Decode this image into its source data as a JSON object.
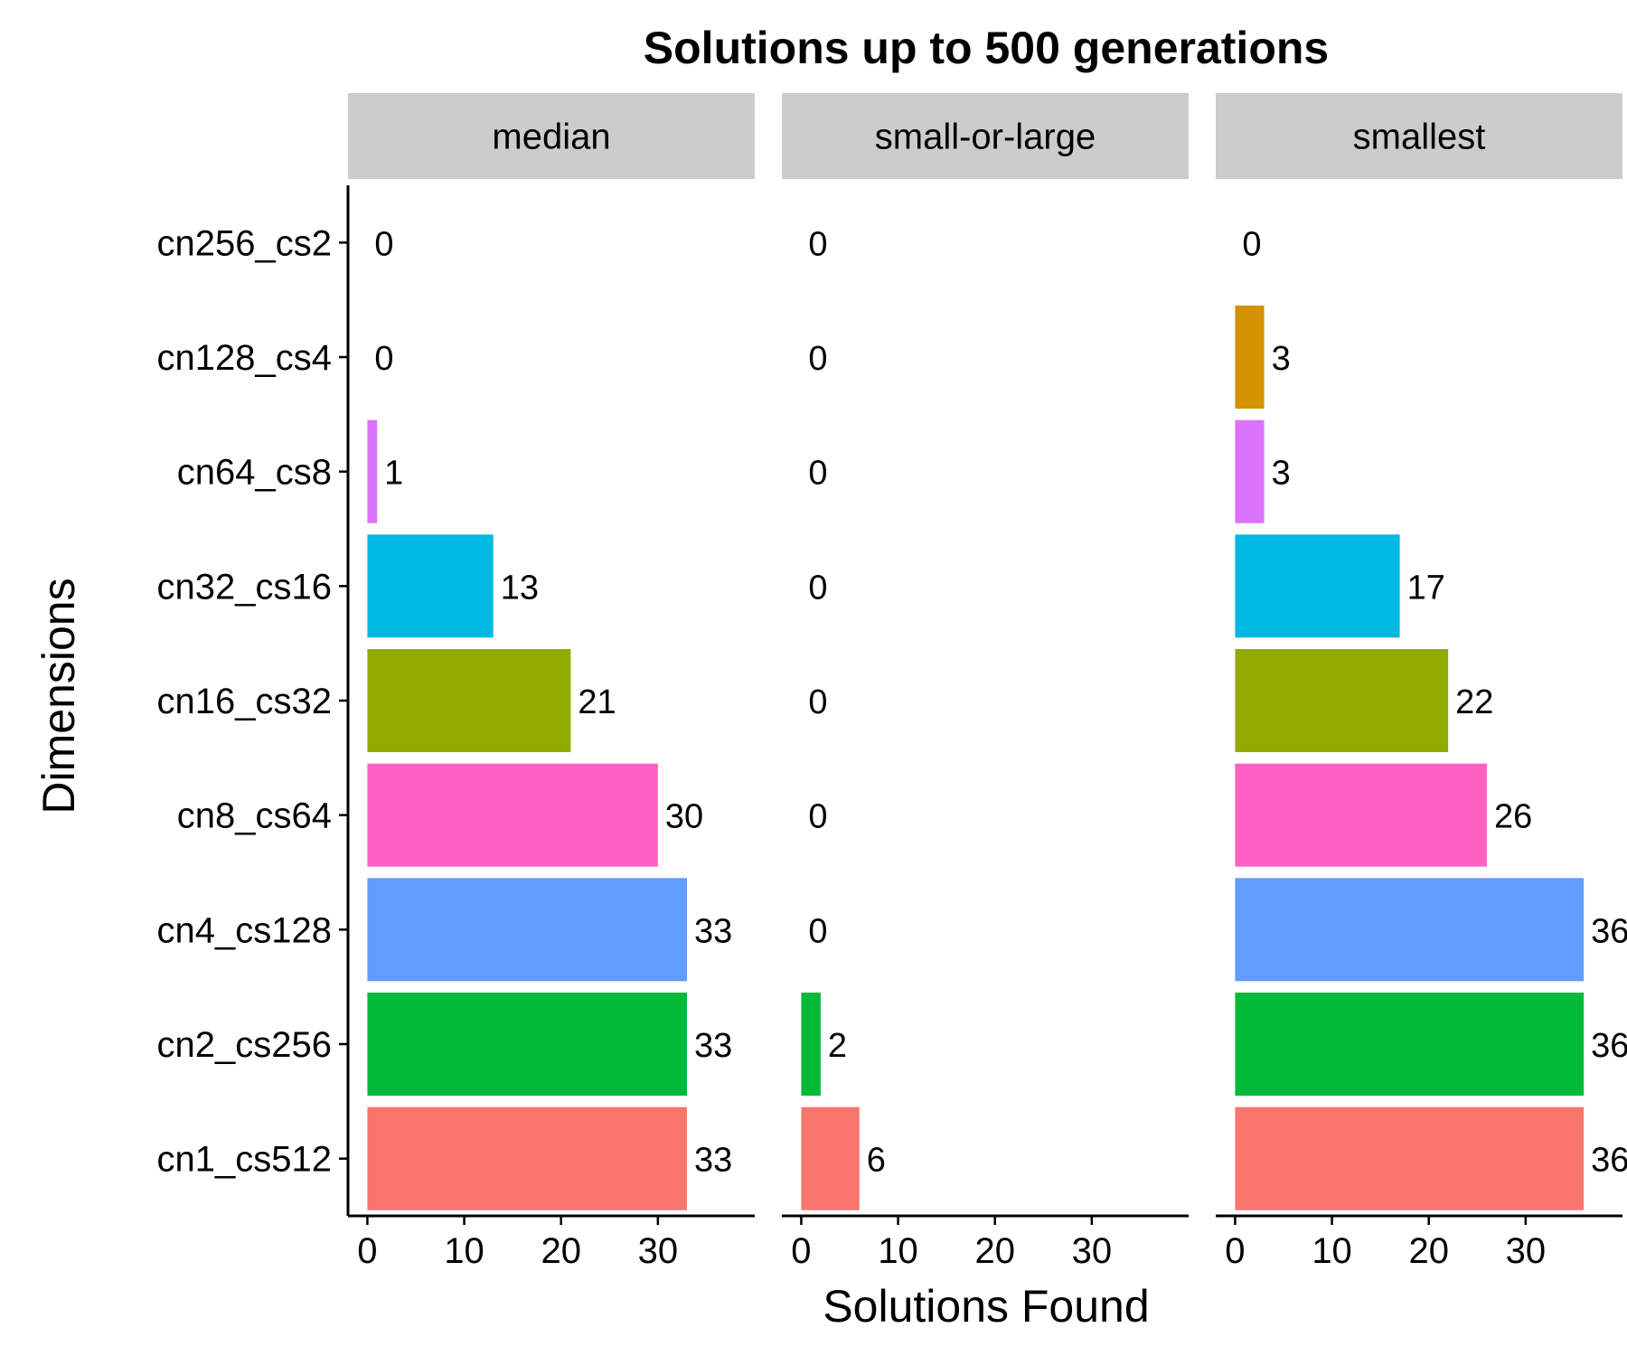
{
  "chart_data": {
    "type": "bar",
    "orientation": "horizontal",
    "title": "Solutions up to 500 generations",
    "xlabel": "Solutions Found",
    "ylabel": "Dimensions",
    "categories": [
      "cn1_cs512",
      "cn2_cs256",
      "cn4_cs128",
      "cn8_cs64",
      "cn16_cs32",
      "cn32_cs16",
      "cn64_cs8",
      "cn128_cs4",
      "cn256_cs2"
    ],
    "colors": [
      "#F8766D",
      "#00BA38",
      "#619CFF",
      "#FF61C3",
      "#93AA00",
      "#00B9E3",
      "#DB72FB",
      "#D39200",
      "#00C19F"
    ],
    "x_ticks": [
      0,
      10,
      20,
      30
    ],
    "xlim": [
      -2,
      40
    ],
    "legend": "none",
    "grid": false,
    "panels": [
      {
        "name": "median",
        "values": [
          33,
          33,
          33,
          30,
          21,
          13,
          1,
          0,
          0
        ]
      },
      {
        "name": "small-or-large",
        "values": [
          6,
          2,
          0,
          0,
          0,
          0,
          0,
          0,
          0
        ]
      },
      {
        "name": "smallest",
        "values": [
          36,
          36,
          36,
          26,
          22,
          17,
          3,
          3,
          0
        ]
      }
    ]
  }
}
